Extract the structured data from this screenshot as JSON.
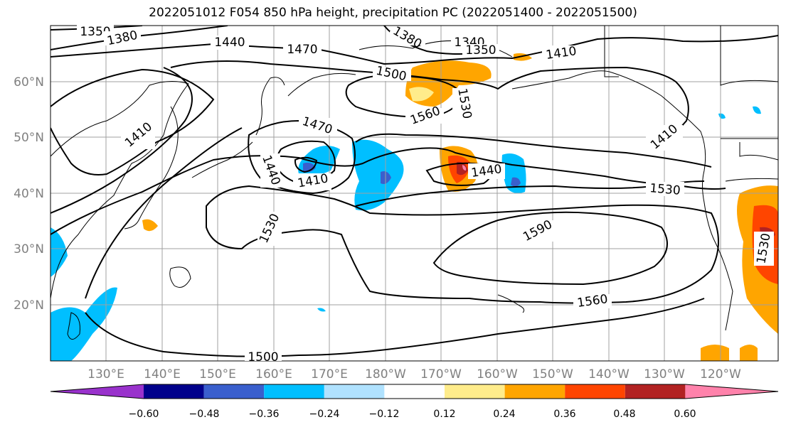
{
  "title": "2022051012 F054 850 hPa height, precipitation PC (2022051400 - 2022051500)",
  "chart_data": {
    "type": "contour_map",
    "variable": "850 hPa height, precipitation PC",
    "lat_ticks": [
      "60°N",
      "50°N",
      "40°N",
      "30°N",
      "20°N"
    ],
    "lon_ticks": [
      "130°E",
      "140°E",
      "150°E",
      "160°E",
      "170°E",
      "180°W",
      "170°W",
      "160°W",
      "150°W",
      "140°W",
      "130°W",
      "120°W"
    ],
    "contour_labels": [
      "1350",
      "1380",
      "1440",
      "1470",
      "1380",
      "1340",
      "1350",
      "1410",
      "1500",
      "1530",
      "1560",
      "1410",
      "1470",
      "1410",
      "1440",
      "1410",
      "1440",
      "1530",
      "1530",
      "1590",
      "1560",
      "1500",
      "1530"
    ],
    "colorbar": {
      "ticks": [
        "−0.60",
        "−0.48",
        "−0.36",
        "−0.24",
        "−0.12",
        "0.12",
        "0.24",
        "0.36",
        "0.48",
        "0.60"
      ],
      "colors": [
        "#9932CC",
        "#00008B",
        "#3A5FCD",
        "#00BFFF",
        "#B0E2FF",
        "#FFFFFF",
        "#FFEC8B",
        "#FFA500",
        "#FF4500",
        "#B22222",
        "#FF82AB"
      ]
    }
  }
}
